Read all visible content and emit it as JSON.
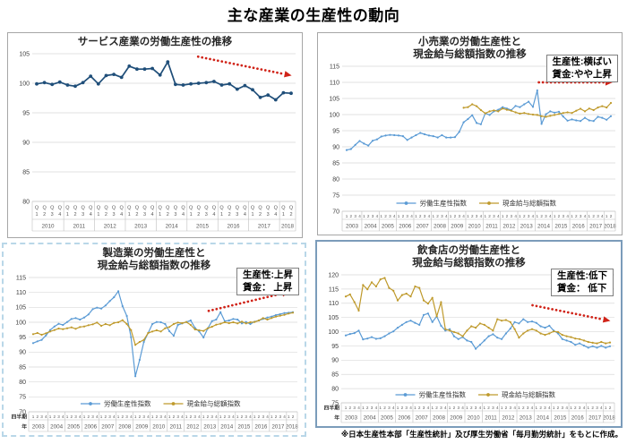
{
  "page_title": "主な産業の生産性の動向",
  "footer_note": "※日本生産性本部「生産性統計」及び厚生労働省「毎月勤労統計」をもとに作成。",
  "colors": {
    "navy_line": "#1f4e79",
    "blue_line": "#5b9bd5",
    "gold_line": "#bf9a2c",
    "arrow_red": "#d02318"
  },
  "chart_data": [
    {
      "type": "line",
      "title_lines": [
        "サービス産業の労働生産性の推移"
      ],
      "ylim": [
        80,
        105
      ],
      "ystep": 5,
      "years": [
        "2010",
        "2011",
        "2012",
        "2013",
        "2014",
        "2015",
        "2016",
        "2017",
        "2018"
      ],
      "quarter_style": "stacked",
      "axis_header": null,
      "legend": false,
      "annotation": null,
      "trend_arrow": {
        "x1": 0.63,
        "y1": 104.5,
        "x2": 0.985,
        "y2": 101.3
      },
      "series": [
        {
          "name": "労働生産性指数",
          "color": "#1f4e79",
          "width": 1.7,
          "marker_r": 1.9,
          "values": [
            99.9,
            100.1,
            99.8,
            100.2,
            99.7,
            99.5,
            100.1,
            101.2,
            99.9,
            101.3,
            101.5,
            101.0,
            102.9,
            102.4,
            102.4,
            102.5,
            101.4,
            103.6,
            99.8,
            99.7,
            99.9,
            100.0,
            100.1,
            100.3,
            99.7,
            99.9,
            99.0,
            99.6,
            98.9,
            97.6,
            98.0,
            97.2,
            98.4,
            98.3
          ]
        }
      ]
    },
    {
      "type": "line",
      "title_lines": [
        "小売業の労働生産性と",
        "現金給与総額指数の推移"
      ],
      "ylim": [
        70,
        115
      ],
      "ystep": 5,
      "years": [
        "2003",
        "2004",
        "2005",
        "2006",
        "2007",
        "2008",
        "2009",
        "2010",
        "2011",
        "2012",
        "2013",
        "2014",
        "2015",
        "2016",
        "2017",
        "2018"
      ],
      "quarter_style": "digits",
      "axis_header": null,
      "legend": true,
      "annotation": [
        "生産性:横ばい",
        "賃金:やや上昇"
      ],
      "trend_arrow": {
        "x1": 0.72,
        "y1": 110,
        "x2": 0.99,
        "y2": 110
      },
      "series": [
        {
          "name": "労働生産性指数",
          "color": "#5b9bd5",
          "width": 1.2,
          "marker_r": 1.1,
          "values": [
            89.0,
            89.3,
            90.6,
            91.8,
            91.0,
            90.4,
            91.9,
            92.3,
            93.2,
            93.5,
            93.7,
            93.6,
            93.5,
            93.3,
            92.1,
            92.9,
            93.6,
            94.3,
            93.9,
            93.5,
            93.3,
            92.9,
            93.6,
            92.9,
            92.9,
            93.0,
            94.6,
            97.6,
            98.6,
            99.8,
            97.4,
            97.0,
            100.4,
            99.9,
            101.0,
            101.5,
            102.3,
            101.9,
            101.4,
            102.7,
            102.3,
            103.2,
            104.0,
            102.4,
            107.5,
            97.1,
            100.1,
            101.0,
            100.6,
            100.9,
            99.4,
            98.1,
            98.5,
            98.2,
            98.0,
            99.0,
            98.2,
            98.0,
            99.3,
            99.0,
            98.4,
            99.5
          ]
        },
        {
          "name": "現金給与総額指数",
          "color": "#bf9a2c",
          "width": 1.2,
          "marker_r": 1.1,
          "values": [
            null,
            null,
            null,
            null,
            null,
            null,
            null,
            null,
            null,
            null,
            null,
            null,
            null,
            null,
            null,
            null,
            null,
            null,
            null,
            null,
            null,
            null,
            null,
            null,
            null,
            null,
            null,
            102.1,
            102.3,
            103.2,
            102.6,
            101.4,
            100.4,
            101.0,
            101.3,
            101.0,
            101.9,
            101.5,
            101.2,
            100.7,
            100.3,
            100.5,
            100.2,
            100.0,
            99.9,
            99.5,
            99.3,
            99.6,
            99.9,
            100.2,
            100.5,
            100.7,
            100.5,
            101.2,
            101.8,
            101.0,
            101.9,
            101.4,
            102.2,
            102.6,
            102.2,
            103.6
          ]
        }
      ]
    },
    {
      "type": "line",
      "title_lines": [
        "製造業の労働生産性と",
        "現金給与総額指数の推移"
      ],
      "ylim": [
        70,
        115
      ],
      "ystep": 5,
      "years": [
        "2003",
        "2004",
        "2005",
        "2006",
        "2007",
        "2008",
        "2009",
        "2010",
        "2011",
        "2012",
        "2013",
        "2014",
        "2015",
        "2016",
        "2017",
        "2018"
      ],
      "quarter_style": "digits",
      "axis_header": [
        "四半期",
        "年"
      ],
      "legend": true,
      "annotation": [
        "生産性:上昇",
        "賃金： 上昇"
      ],
      "trend_arrow": {
        "x1": 0.67,
        "y1": 103.8,
        "x2": 0.97,
        "y2": 110.2
      },
      "series": [
        {
          "name": "労働生産性指数",
          "color": "#5b9bd5",
          "width": 1.2,
          "marker_r": 1.1,
          "values": [
            93.0,
            93.6,
            94.1,
            95.6,
            97.4,
            98.6,
            99.5,
            99.1,
            100.1,
            101.1,
            101.4,
            100.9,
            101.6,
            102.6,
            104.4,
            104.9,
            104.6,
            105.6,
            107.1,
            108.4,
            110.4,
            105.4,
            102.1,
            95.0,
            81.9,
            87.4,
            93.4,
            96.4,
            99.4,
            100.1,
            100.0,
            99.4,
            97.0,
            95.5,
            99.1,
            99.6,
            100.1,
            100.6,
            98.1,
            96.9,
            94.9,
            97.9,
            100.4,
            100.9,
            103.4,
            100.4,
            100.6,
            101.1,
            100.9,
            99.6,
            100.1,
            99.4,
            100.2,
            100.6,
            101.1,
            101.6,
            101.9,
            102.4,
            102.7,
            103.1,
            103.2,
            103.4
          ]
        },
        {
          "name": "現金給与総額指数",
          "color": "#bf9a2c",
          "width": 1.2,
          "marker_r": 1.1,
          "values": [
            96.0,
            96.4,
            95.8,
            96.3,
            96.9,
            97.4,
            97.9,
            97.7,
            98.0,
            98.3,
            97.8,
            98.4,
            98.6,
            99.0,
            99.3,
            99.9,
            98.8,
            99.4,
            99.0,
            99.8,
            100.0,
            100.7,
            99.4,
            97.4,
            92.4,
            93.4,
            94.1,
            96.4,
            96.9,
            97.3,
            96.9,
            98.0,
            98.4,
            99.4,
            99.9,
            99.7,
            100.1,
            99.1,
            97.6,
            97.3,
            97.1,
            98.0,
            98.5,
            99.2,
            99.5,
            100.0,
            99.7,
            100.0,
            99.6,
            100.2,
            99.6,
            100.0,
            100.1,
            100.6,
            101.4,
            100.9,
            101.4,
            101.9,
            102.2,
            102.5,
            102.9,
            103.2
          ]
        }
      ]
    },
    {
      "type": "line",
      "title_lines": [
        "飲食店の労働生産性と",
        "現金給与総額指数の推移"
      ],
      "ylim": [
        75,
        120
      ],
      "ystep": 5,
      "years": [
        "2003",
        "2004",
        "2005",
        "2006",
        "2007",
        "2008",
        "2009",
        "2010",
        "2011",
        "2012",
        "2013",
        "2014",
        "2015",
        "2016",
        "2017",
        "2018"
      ],
      "quarter_style": "digits",
      "axis_header": [
        "四半期",
        "年"
      ],
      "legend": true,
      "annotation": [
        "生産性:低下",
        "賃金： 低下"
      ],
      "trend_arrow": {
        "x1": 0.7,
        "y1": 109.3,
        "x2": 0.985,
        "y2": 103.8
      },
      "series": [
        {
          "name": "労働生産性指数",
          "color": "#5b9bd5",
          "width": 1.2,
          "marker_r": 1.1,
          "values": [
            98.7,
            99.2,
            99.5,
            100.4,
            97.3,
            97.6,
            98.1,
            97.5,
            97.7,
            98.4,
            99.4,
            100.1,
            101.4,
            102.4,
            103.4,
            103.9,
            103.1,
            102.4,
            105.9,
            106.4,
            103.4,
            105.4,
            102.1,
            100.4,
            100.9,
            98.4,
            97.4,
            98.1,
            96.9,
            96.4,
            94.0,
            95.4,
            96.9,
            98.4,
            99.1,
            97.9,
            97.4,
            99.4,
            101.1,
            103.4,
            102.9,
            104.4,
            103.4,
            103.6,
            103.1,
            101.9,
            101.4,
            102.1,
            100.4,
            99.4,
            97.4,
            96.9,
            96.4,
            95.4,
            95.9,
            95.1,
            94.4,
            94.9,
            94.4,
            95.0,
            94.4,
            94.9
          ]
        },
        {
          "name": "現金給与総額指数",
          "color": "#bf9a2c",
          "width": 1.2,
          "marker_r": 1.1,
          "values": [
            112.4,
            113.1,
            110.4,
            107.4,
            116.4,
            114.9,
            117.4,
            115.9,
            118.4,
            118.9,
            115.4,
            114.4,
            111.0,
            112.9,
            113.4,
            112.4,
            115.9,
            115.4,
            111.0,
            109.9,
            111.9,
            105.4,
            110.4,
            100.9,
            100.4,
            99.9,
            99.4,
            98.4,
            100.4,
            101.9,
            101.4,
            102.9,
            102.4,
            101.4,
            100.4,
            104.4,
            103.9,
            104.1,
            103.4,
            100.9,
            97.9,
            99.4,
            100.4,
            100.9,
            100.4,
            99.4,
            98.9,
            99.4,
            100.1,
            99.9,
            98.9,
            98.4,
            98.1,
            97.6,
            97.4,
            96.9,
            96.4,
            96.1,
            95.9,
            96.4,
            95.9,
            96.2
          ]
        }
      ]
    }
  ]
}
